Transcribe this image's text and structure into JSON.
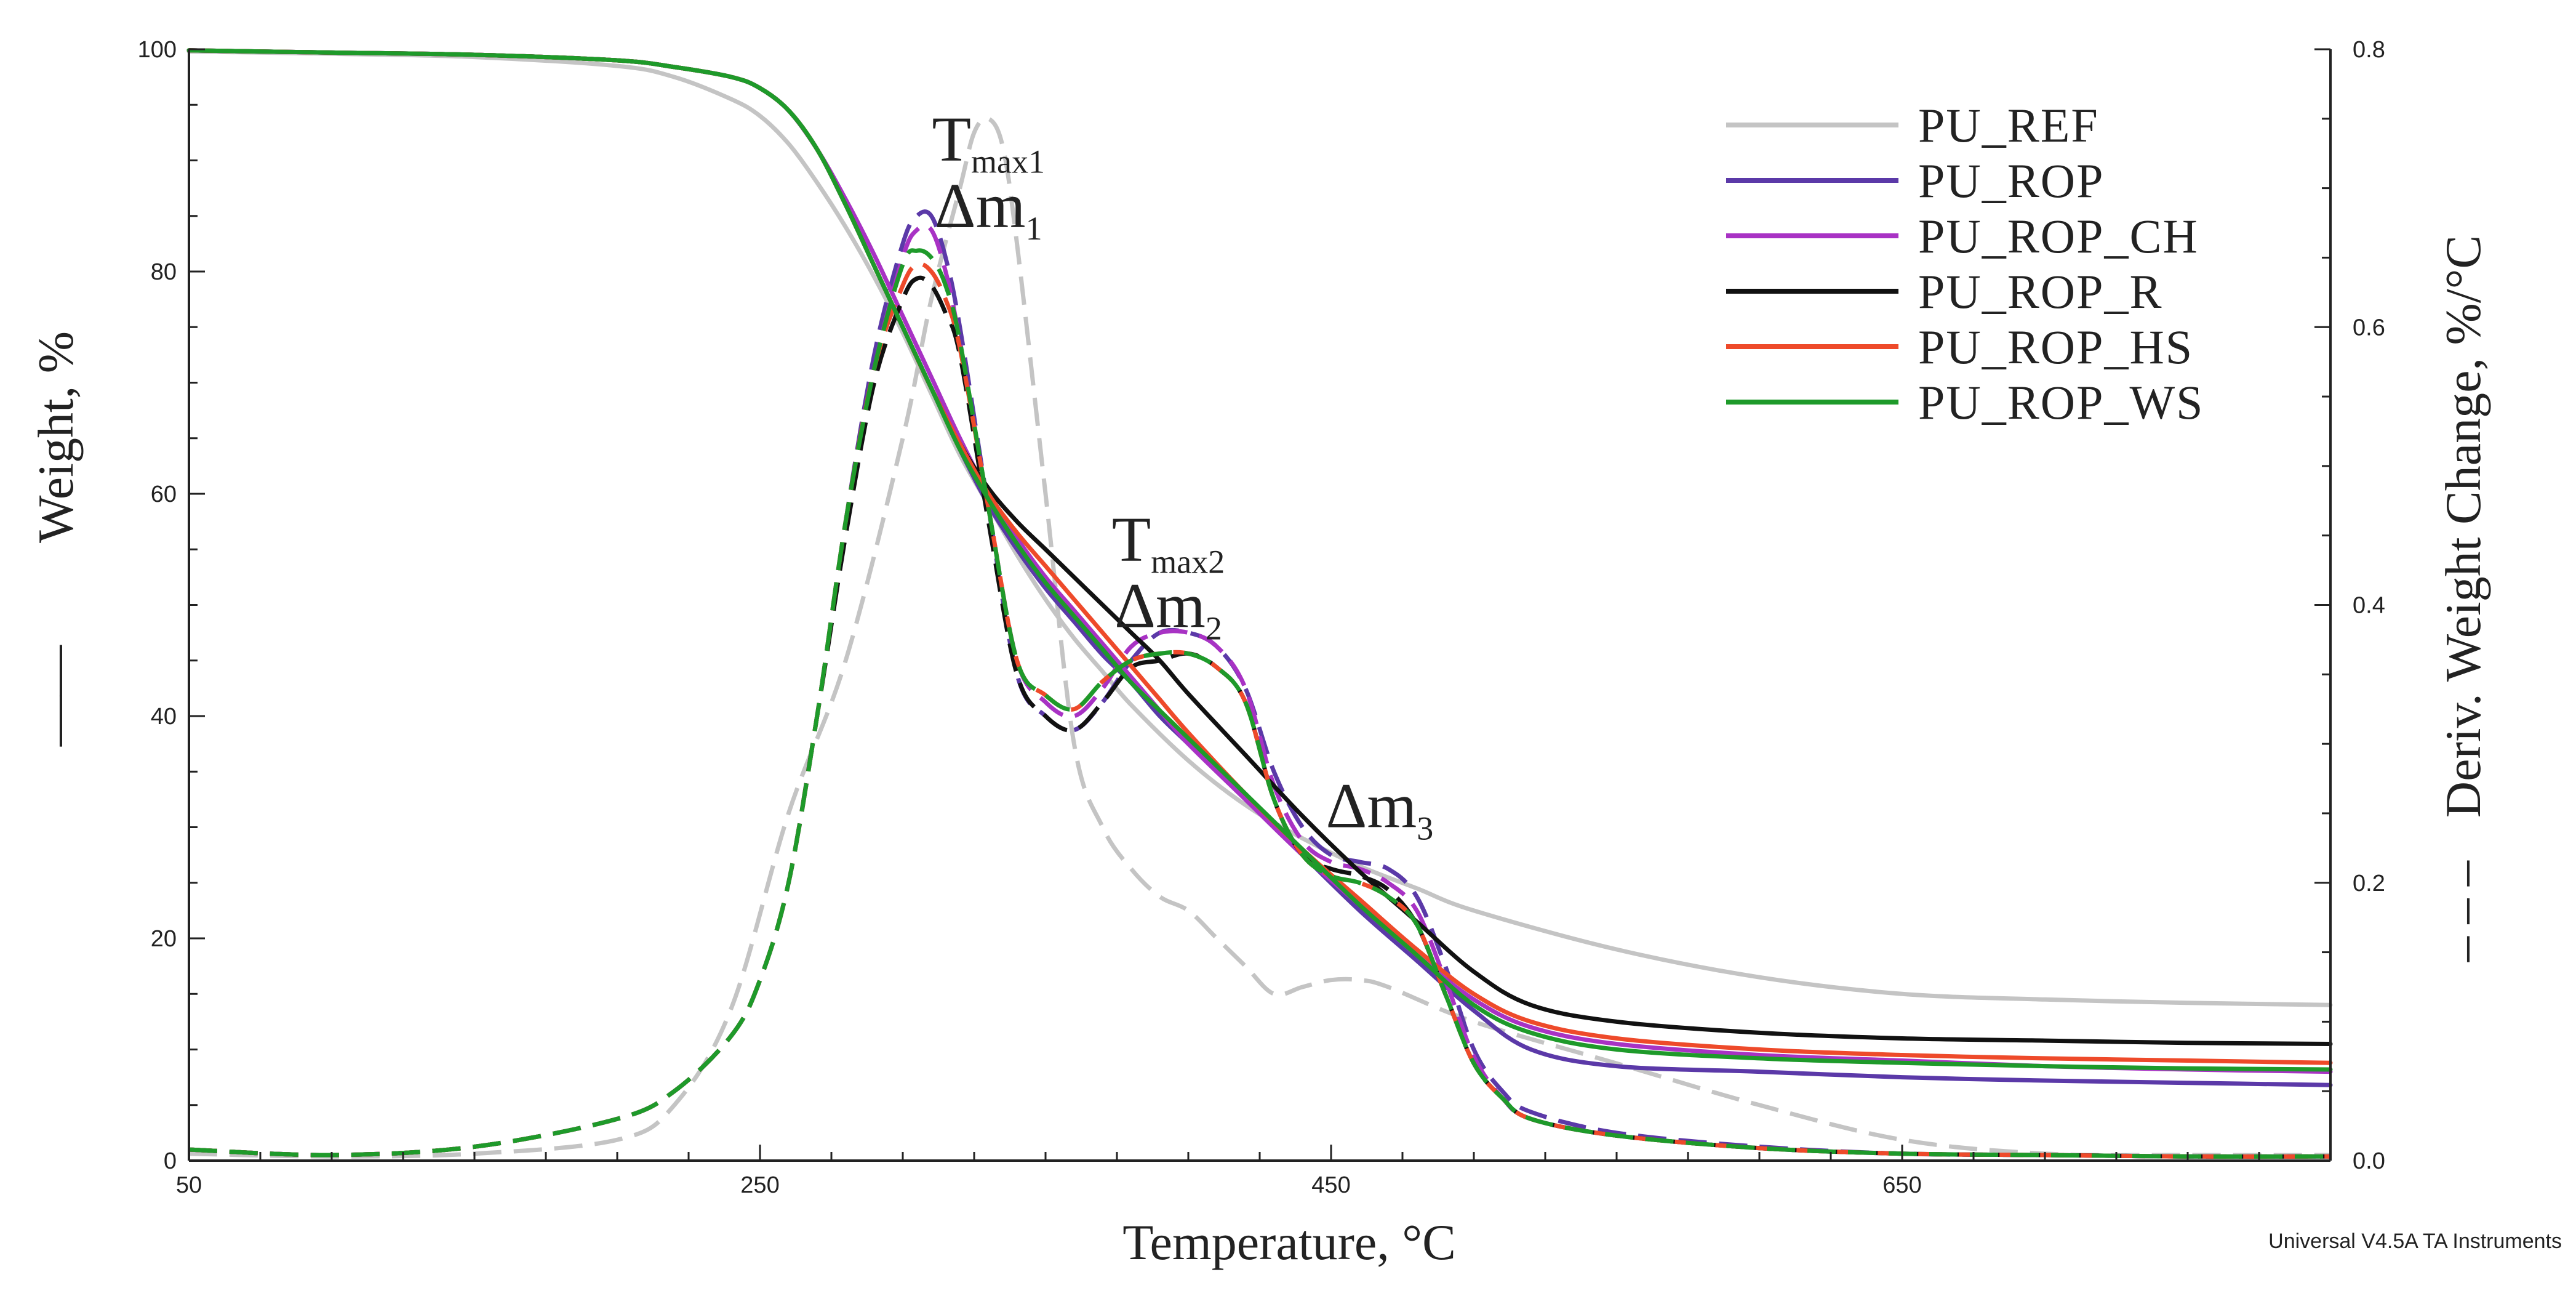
{
  "chart_data": {
    "type": "line",
    "title": "",
    "xlabel": "Temperature, °C",
    "ylabel": "Weight, %",
    "ylabel_marker": "——",
    "y2label": "Deriv. Weight Change, %/°C",
    "y2label_marker": "– – –",
    "xlim": [
      50,
      800
    ],
    "ylim": [
      0,
      100
    ],
    "y2lim": [
      0,
      0.8
    ],
    "xticks": [
      "50",
      "250",
      "450",
      "650"
    ],
    "yticks": [
      "0",
      "20",
      "40",
      "60",
      "80",
      "100"
    ],
    "y2ticks": [
      "0.0",
      "0.2",
      "0.4",
      "0.6",
      "0.8"
    ],
    "grid": false,
    "legend_position": "top-right",
    "footer": "Universal V4.5A TA Instruments",
    "annotations": [
      {
        "base": "T",
        "sub": "max1",
        "temp": 330,
        "y": 90
      },
      {
        "base": "Δm",
        "sub": "1",
        "temp": 330,
        "y": 84
      },
      {
        "base": "T",
        "sub": "max2",
        "temp": 393,
        "y": 54
      },
      {
        "base": "Δm",
        "sub": "2",
        "temp": 393,
        "y": 48
      },
      {
        "base": "Δm",
        "sub": "3",
        "temp": 467,
        "y": 30
      }
    ],
    "series": [
      {
        "name": "PU_REF",
        "color": "#c4c4c4",
        "weight_x": [
          50,
          100,
          150,
          200,
          220,
          240,
          250,
          260,
          270,
          280,
          290,
          300,
          310,
          320,
          330,
          340,
          350,
          360,
          370,
          380,
          400,
          420,
          440,
          460,
          480,
          500,
          550,
          600,
          650,
          700,
          750,
          800
        ],
        "weight_y": [
          99.8,
          99.6,
          99.3,
          98.5,
          97.5,
          95.5,
          94,
          91.5,
          88,
          84,
          79.5,
          74.5,
          69,
          63.5,
          59,
          54.5,
          50.5,
          47,
          44,
          41,
          36,
          32,
          29,
          26.5,
          24.5,
          22.5,
          19,
          16.5,
          15,
          14.5,
          14.2,
          14.0
        ],
        "deriv_x": [
          50,
          100,
          150,
          200,
          220,
          240,
          260,
          280,
          300,
          310,
          320,
          325,
          330,
          335,
          340,
          350,
          360,
          370,
          380,
          390,
          400,
          410,
          420,
          430,
          440,
          450,
          460,
          470,
          500,
          550,
          600,
          650,
          700,
          750,
          800
        ],
        "deriv_y": [
          0.005,
          0.003,
          0.005,
          0.015,
          0.04,
          0.11,
          0.25,
          0.36,
          0.52,
          0.62,
          0.7,
          0.74,
          0.75,
          0.73,
          0.66,
          0.48,
          0.3,
          0.24,
          0.21,
          0.19,
          0.18,
          0.16,
          0.14,
          0.12,
          0.125,
          0.13,
          0.13,
          0.125,
          0.1,
          0.07,
          0.04,
          0.015,
          0.005,
          0.004,
          0.004
        ]
      },
      {
        "name": "PU_ROP",
        "color": "#5b39a8",
        "weight_x": [
          50,
          100,
          150,
          200,
          220,
          240,
          250,
          260,
          270,
          280,
          290,
          300,
          310,
          320,
          330,
          340,
          350,
          360,
          370,
          380,
          390,
          400,
          420,
          440,
          460,
          480,
          500,
          520,
          550,
          600,
          650,
          700,
          750,
          800
        ],
        "weight_y": [
          99.9,
          99.7,
          99.5,
          99,
          98.4,
          97.5,
          96.5,
          94.5,
          91,
          86,
          80.5,
          75,
          69.5,
          64,
          59,
          55,
          51.5,
          48.5,
          45.5,
          43,
          40,
          37.5,
          32.5,
          27.5,
          22.5,
          18,
          13.5,
          10,
          8.5,
          8,
          7.5,
          7.2,
          7,
          6.8
        ],
        "deriv_x": [
          50,
          100,
          150,
          200,
          220,
          240,
          250,
          260,
          270,
          280,
          290,
          300,
          305,
          310,
          315,
          320,
          330,
          340,
          350,
          360,
          370,
          380,
          390,
          400,
          410,
          420,
          430,
          440,
          450,
          460,
          470,
          480,
          490,
          500,
          510,
          520,
          550,
          600,
          650,
          700,
          750,
          800
        ],
        "deriv_y": [
          0.008,
          0.004,
          0.01,
          0.03,
          0.05,
          0.09,
          0.13,
          0.2,
          0.32,
          0.46,
          0.58,
          0.66,
          0.68,
          0.68,
          0.65,
          0.6,
          0.47,
          0.35,
          0.32,
          0.31,
          0.33,
          0.36,
          0.38,
          0.38,
          0.37,
          0.34,
          0.28,
          0.24,
          0.22,
          0.215,
          0.21,
          0.19,
          0.14,
          0.08,
          0.05,
          0.035,
          0.02,
          0.01,
          0.005,
          0.004,
          0.003,
          0.003
        ]
      },
      {
        "name": "PU_ROP_CH",
        "color": "#a832c4",
        "weight_x": [
          50,
          100,
          150,
          200,
          220,
          240,
          250,
          260,
          270,
          280,
          290,
          300,
          310,
          320,
          330,
          340,
          350,
          360,
          370,
          380,
          390,
          400,
          420,
          440,
          460,
          480,
          500,
          520,
          550,
          600,
          650,
          700,
          750,
          800
        ],
        "weight_y": [
          99.9,
          99.7,
          99.5,
          99,
          98.4,
          97.5,
          96.5,
          94.5,
          91,
          86.5,
          81.5,
          76,
          70.5,
          65,
          60,
          56,
          52.5,
          49.5,
          46.5,
          43.5,
          40.5,
          37.5,
          32.5,
          27.5,
          23,
          18.5,
          14.5,
          12,
          10.5,
          9.5,
          9,
          8.5,
          8.2,
          8.0
        ],
        "deriv_x": [
          50,
          100,
          150,
          200,
          220,
          240,
          250,
          260,
          270,
          280,
          290,
          300,
          305,
          310,
          315,
          320,
          330,
          340,
          350,
          360,
          370,
          380,
          390,
          400,
          410,
          420,
          430,
          440,
          450,
          460,
          470,
          480,
          490,
          500,
          510,
          520,
          550,
          600,
          650,
          700,
          750,
          800
        ],
        "deriv_y": [
          0.008,
          0.004,
          0.01,
          0.03,
          0.05,
          0.09,
          0.13,
          0.2,
          0.32,
          0.46,
          0.57,
          0.65,
          0.67,
          0.67,
          0.64,
          0.59,
          0.47,
          0.36,
          0.33,
          0.32,
          0.34,
          0.37,
          0.38,
          0.38,
          0.37,
          0.34,
          0.27,
          0.23,
          0.215,
          0.21,
          0.2,
          0.18,
          0.13,
          0.075,
          0.045,
          0.03,
          0.018,
          0.009,
          0.005,
          0.004,
          0.003,
          0.003
        ]
      },
      {
        "name": "PU_ROP_R",
        "color": "#111111",
        "weight_x": [
          50,
          100,
          150,
          200,
          220,
          240,
          250,
          260,
          270,
          280,
          290,
          300,
          310,
          320,
          330,
          340,
          350,
          360,
          370,
          380,
          390,
          400,
          420,
          440,
          460,
          480,
          500,
          520,
          550,
          600,
          650,
          700,
          750,
          800
        ],
        "weight_y": [
          99.9,
          99.7,
          99.5,
          99,
          98.4,
          97.5,
          96.5,
          94.5,
          91,
          86,
          80.5,
          75,
          69.5,
          64.5,
          60.5,
          57.5,
          55,
          52.5,
          50,
          47.5,
          45,
          42,
          36.5,
          31,
          26,
          21.5,
          17,
          14,
          12.5,
          11.5,
          11,
          10.8,
          10.6,
          10.5
        ],
        "deriv_x": [
          50,
          100,
          150,
          200,
          220,
          240,
          250,
          260,
          270,
          280,
          290,
          300,
          305,
          310,
          315,
          320,
          330,
          340,
          350,
          360,
          370,
          380,
          390,
          400,
          410,
          420,
          430,
          440,
          450,
          460,
          470,
          480,
          490,
          500,
          510,
          520,
          550,
          600,
          650,
          700,
          750,
          800
        ],
        "deriv_y": [
          0.008,
          0.004,
          0.01,
          0.03,
          0.05,
          0.09,
          0.13,
          0.2,
          0.32,
          0.45,
          0.56,
          0.62,
          0.635,
          0.63,
          0.61,
          0.58,
          0.46,
          0.35,
          0.32,
          0.31,
          0.33,
          0.355,
          0.36,
          0.365,
          0.355,
          0.33,
          0.26,
          0.22,
          0.21,
          0.205,
          0.195,
          0.17,
          0.12,
          0.07,
          0.045,
          0.03,
          0.018,
          0.009,
          0.005,
          0.004,
          0.003,
          0.003
        ]
      },
      {
        "name": "PU_ROP_HS",
        "color": "#ee4a2a",
        "weight_x": [
          50,
          100,
          150,
          200,
          220,
          240,
          250,
          260,
          270,
          280,
          290,
          300,
          310,
          320,
          330,
          340,
          350,
          360,
          370,
          380,
          390,
          400,
          420,
          440,
          460,
          480,
          500,
          520,
          550,
          600,
          650,
          700,
          750,
          800
        ],
        "weight_y": [
          99.9,
          99.7,
          99.5,
          99,
          98.4,
          97.5,
          96.5,
          94.5,
          91,
          86,
          80.5,
          75,
          69.5,
          64.5,
          60,
          56.5,
          53.5,
          50.5,
          47.5,
          44.5,
          41.5,
          38.5,
          33,
          28,
          23.5,
          19,
          15,
          12.5,
          11,
          10,
          9.5,
          9.2,
          9,
          8.8
        ],
        "deriv_x": [
          50,
          100,
          150,
          200,
          220,
          240,
          250,
          260,
          270,
          280,
          290,
          300,
          305,
          310,
          315,
          320,
          330,
          340,
          350,
          360,
          370,
          380,
          390,
          400,
          410,
          420,
          430,
          440,
          450,
          460,
          470,
          480,
          490,
          500,
          510,
          520,
          550,
          600,
          650,
          700,
          750,
          800
        ],
        "deriv_y": [
          0.008,
          0.004,
          0.01,
          0.03,
          0.05,
          0.09,
          0.13,
          0.2,
          0.32,
          0.46,
          0.57,
          0.63,
          0.645,
          0.64,
          0.62,
          0.585,
          0.47,
          0.36,
          0.335,
          0.325,
          0.345,
          0.36,
          0.365,
          0.365,
          0.355,
          0.33,
          0.26,
          0.22,
          0.205,
          0.2,
          0.19,
          0.17,
          0.12,
          0.07,
          0.045,
          0.03,
          0.018,
          0.009,
          0.005,
          0.004,
          0.003,
          0.003
        ]
      },
      {
        "name": "PU_ROP_WS",
        "color": "#1e9a2a",
        "weight_x": [
          50,
          100,
          150,
          200,
          220,
          240,
          250,
          260,
          270,
          280,
          290,
          300,
          310,
          320,
          330,
          340,
          350,
          360,
          370,
          380,
          390,
          400,
          420,
          440,
          460,
          480,
          500,
          520,
          550,
          600,
          650,
          700,
          750,
          800
        ],
        "weight_y": [
          99.9,
          99.7,
          99.5,
          99,
          98.4,
          97.5,
          96.5,
          94.5,
          91,
          86,
          80.5,
          75,
          69.5,
          64,
          59.5,
          55.5,
          52,
          49,
          46,
          43,
          40.5,
          38,
          33,
          28,
          23,
          18.5,
          14,
          11.5,
          10,
          9.2,
          8.8,
          8.5,
          8.3,
          8.2
        ],
        "deriv_x": [
          50,
          100,
          150,
          200,
          220,
          240,
          250,
          260,
          270,
          280,
          290,
          300,
          305,
          310,
          315,
          320,
          330,
          340,
          350,
          360,
          370,
          380,
          390,
          400,
          410,
          420,
          430,
          440,
          450,
          460,
          470,
          480,
          490,
          500,
          510,
          520,
          550,
          600,
          650,
          700,
          750,
          800
        ],
        "deriv_y": [
          0.008,
          0.004,
          0.01,
          0.03,
          0.05,
          0.09,
          0.13,
          0.2,
          0.32,
          0.46,
          0.57,
          0.645,
          0.655,
          0.65,
          0.63,
          0.59,
          0.47,
          0.36,
          0.335,
          0.325,
          0.345,
          0.36,
          0.365,
          0.365,
          0.355,
          0.33,
          0.26,
          0.22,
          0.205,
          0.2,
          0.19,
          0.17,
          0.12,
          0.07,
          0.045,
          0.03,
          0.018,
          0.009,
          0.005,
          0.004,
          0.003,
          0.003
        ]
      }
    ]
  }
}
